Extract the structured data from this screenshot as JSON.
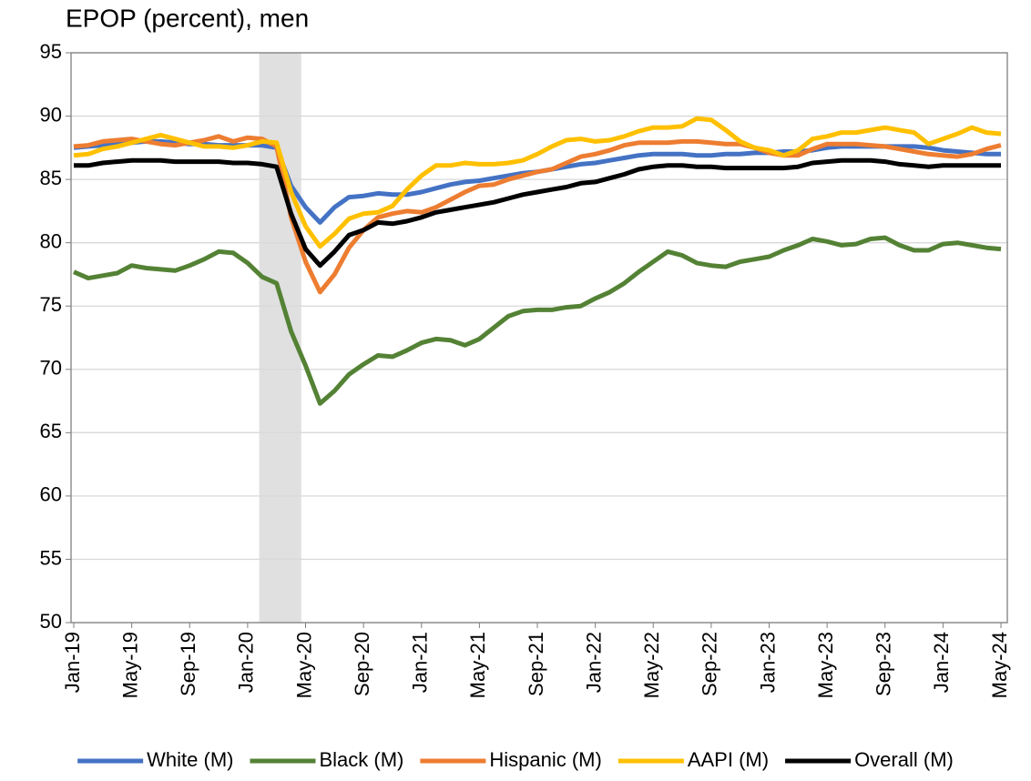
{
  "chart_data": {
    "type": "line",
    "title": "EPOP (percent), men",
    "categories": [
      "Jan-19",
      null,
      null,
      null,
      "May-19",
      null,
      null,
      null,
      "Sep-19",
      null,
      null,
      null,
      "Jan-20",
      null,
      null,
      null,
      "May-20",
      null,
      null,
      null,
      "Sep-20",
      null,
      null,
      null,
      "Jan-21",
      null,
      null,
      null,
      "May-21",
      null,
      null,
      null,
      "Sep-21",
      null,
      null,
      null,
      "Jan-22",
      null,
      null,
      null,
      "May-22",
      null,
      null,
      null,
      "Sep-22",
      null,
      null,
      null,
      "Jan-23",
      null,
      null,
      null,
      "May-23",
      null,
      null,
      null,
      "Sep-23",
      null,
      null,
      null,
      "Jan-24",
      null,
      null,
      null,
      "May-24"
    ],
    "shade": [
      12.8,
      15.7
    ],
    "series": [
      {
        "name": "White (M)",
        "color": "#4472c4",
        "values": [
          87.5,
          87.6,
          87.7,
          87.8,
          87.9,
          88.0,
          88.0,
          87.9,
          87.8,
          87.8,
          87.7,
          87.7,
          87.7,
          87.7,
          87.5,
          84.5,
          82.8,
          81.6,
          82.8,
          83.6,
          83.7,
          83.9,
          83.8,
          83.8,
          84.0,
          84.3,
          84.6,
          84.8,
          84.9,
          85.1,
          85.3,
          85.5,
          85.6,
          85.8,
          86.0,
          86.2,
          86.3,
          86.5,
          86.7,
          86.9,
          87.0,
          87.0,
          87.0,
          86.9,
          86.9,
          87.0,
          87.0,
          87.1,
          87.1,
          87.2,
          87.2,
          87.3,
          87.5,
          87.6,
          87.6,
          87.6,
          87.6,
          87.6,
          87.6,
          87.5,
          87.3,
          87.2,
          87.1,
          87.0,
          87.0
        ]
      },
      {
        "name": "Black (M)",
        "color": "#548235",
        "values": [
          77.7,
          77.2,
          77.4,
          77.6,
          78.2,
          78.0,
          77.9,
          77.8,
          78.2,
          78.7,
          79.3,
          79.2,
          78.4,
          77.3,
          76.8,
          73.0,
          70.3,
          67.3,
          68.3,
          69.6,
          70.4,
          71.1,
          71.0,
          71.5,
          72.1,
          72.4,
          72.3,
          71.9,
          72.4,
          73.3,
          74.2,
          74.6,
          74.7,
          74.7,
          74.9,
          75.0,
          75.6,
          76.1,
          76.8,
          77.7,
          78.5,
          79.3,
          79.0,
          78.4,
          78.2,
          78.1,
          78.5,
          78.7,
          78.9,
          79.4,
          79.8,
          80.3,
          80.1,
          79.8,
          79.9,
          80.3,
          80.4,
          79.8,
          79.4,
          79.4,
          79.9,
          80.0,
          79.8,
          79.6,
          79.5
        ]
      },
      {
        "name": "Hispanic (M)",
        "color": "#ed7d31",
        "values": [
          87.6,
          87.7,
          88.0,
          88.1,
          88.2,
          88.0,
          87.8,
          87.7,
          87.9,
          88.1,
          88.4,
          88.0,
          88.3,
          88.2,
          87.6,
          82.0,
          78.5,
          76.1,
          77.5,
          79.6,
          81.0,
          82.0,
          82.3,
          82.5,
          82.4,
          82.8,
          83.4,
          84.0,
          84.5,
          84.6,
          85.0,
          85.3,
          85.6,
          85.8,
          86.3,
          86.8,
          87.0,
          87.3,
          87.7,
          87.9,
          87.9,
          87.9,
          88.0,
          88.0,
          87.9,
          87.8,
          87.8,
          87.5,
          87.1,
          86.9,
          86.9,
          87.4,
          87.8,
          87.8,
          87.8,
          87.7,
          87.6,
          87.4,
          87.2,
          87.0,
          86.9,
          86.8,
          87.0,
          87.4,
          87.7
        ]
      },
      {
        "name": "AAPI (M)",
        "color": "#ffc000",
        "values": [
          86.9,
          87.0,
          87.4,
          87.6,
          87.9,
          88.2,
          88.5,
          88.2,
          87.9,
          87.6,
          87.6,
          87.5,
          87.7,
          88.0,
          87.9,
          84.0,
          81.3,
          79.7,
          80.7,
          81.9,
          82.3,
          82.4,
          82.9,
          84.2,
          85.3,
          86.1,
          86.1,
          86.3,
          86.2,
          86.2,
          86.3,
          86.5,
          87.0,
          87.6,
          88.1,
          88.2,
          88.0,
          88.1,
          88.4,
          88.8,
          89.1,
          89.1,
          89.2,
          89.8,
          89.7,
          88.9,
          88.0,
          87.5,
          87.3,
          86.9,
          87.3,
          88.2,
          88.4,
          88.7,
          88.7,
          88.9,
          89.1,
          88.9,
          88.7,
          87.8,
          88.2,
          88.6,
          89.1,
          88.7,
          88.6
        ]
      },
      {
        "name": "Overall (M)",
        "color": "#000000",
        "values": [
          86.1,
          86.1,
          86.3,
          86.4,
          86.5,
          86.5,
          86.5,
          86.4,
          86.4,
          86.4,
          86.4,
          86.3,
          86.3,
          86.2,
          86.0,
          82.3,
          79.5,
          78.2,
          79.3,
          80.6,
          81.0,
          81.6,
          81.5,
          81.7,
          82.0,
          82.4,
          82.6,
          82.8,
          83.0,
          83.2,
          83.5,
          83.8,
          84.0,
          84.2,
          84.4,
          84.7,
          84.8,
          85.1,
          85.4,
          85.8,
          86.0,
          86.1,
          86.1,
          86.0,
          86.0,
          85.9,
          85.9,
          85.9,
          85.9,
          85.9,
          86.0,
          86.3,
          86.4,
          86.5,
          86.5,
          86.5,
          86.4,
          86.2,
          86.1,
          86.0,
          86.1,
          86.1,
          86.1,
          86.1,
          86.1
        ]
      }
    ],
    "ylim": [
      50,
      95
    ],
    "yticks": [
      50,
      55,
      60,
      65,
      70,
      75,
      80,
      85,
      90,
      95
    ],
    "grid": true,
    "legend": "bottom"
  }
}
